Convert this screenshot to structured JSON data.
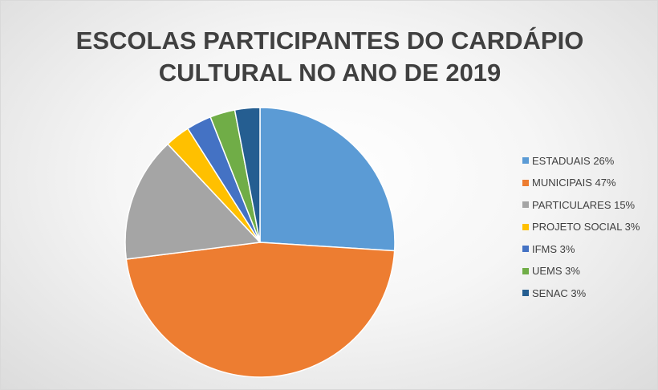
{
  "chart_data": {
    "type": "pie",
    "title_lines": [
      "ESCOLAS PARTICIPANTES DO CARDÁPIO",
      "CULTURAL NO ANO DE 2019"
    ],
    "legend_position": "right",
    "slices": [
      {
        "label": "ESTADUAIS 26%",
        "value": 26,
        "color": "#5b9bd5"
      },
      {
        "label": "MUNICIPAIS 47%",
        "value": 47,
        "color": "#ed7d31"
      },
      {
        "label": "PARTICULARES 15%",
        "value": 15,
        "color": "#a5a5a5"
      },
      {
        "label": "PROJETO SOCIAL 3%",
        "value": 3,
        "color": "#ffc000"
      },
      {
        "label": "IFMS 3%",
        "value": 3,
        "color": "#4472c4"
      },
      {
        "label": "UEMS 3%",
        "value": 3,
        "color": "#70ad47"
      },
      {
        "label": "SENAC 3%",
        "value": 3,
        "color": "#255e91"
      }
    ]
  }
}
